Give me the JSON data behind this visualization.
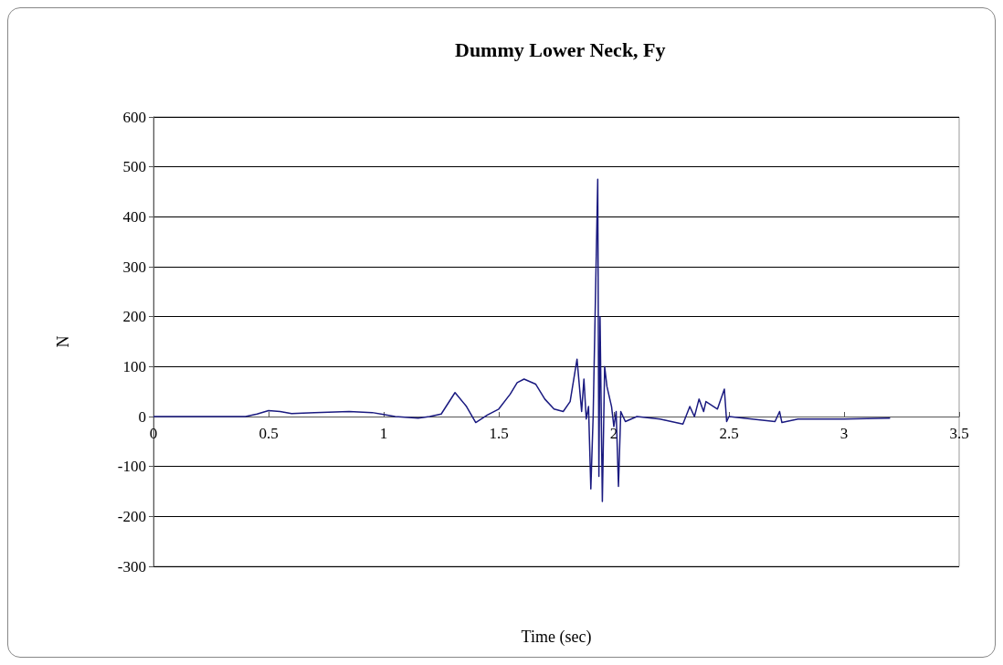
{
  "chart_data": {
    "type": "line",
    "title": "Dummy Lower Neck, Fy",
    "xlabel": "Time (sec)",
    "ylabel": "N",
    "xlim": [
      0,
      3.5
    ],
    "xticks": [
      0,
      0.5,
      1,
      1.5,
      2,
      2.5,
      3,
      3.5
    ],
    "ylim": [
      -300,
      600
    ],
    "yticks": [
      -300,
      -200,
      -100,
      0,
      100,
      200,
      300,
      400,
      500,
      600
    ],
    "grid": "y",
    "marker": "none",
    "line_style": "solid",
    "series": [
      {
        "color": "#1a1a80",
        "x": [
          0,
          0.4,
          0.45,
          0.5,
          0.55,
          0.6,
          0.7,
          0.85,
          0.95,
          1.0,
          1.05,
          1.15,
          1.2,
          1.25,
          1.31,
          1.36,
          1.4,
          1.45,
          1.5,
          1.55,
          1.58,
          1.61,
          1.66,
          1.7,
          1.74,
          1.78,
          1.81,
          1.84,
          1.86,
          1.87,
          1.88,
          1.89,
          1.9,
          1.91,
          1.93,
          1.935,
          1.94,
          1.95,
          1.96,
          1.97,
          1.99,
          2.0,
          2.01,
          2.02,
          2.03,
          2.05,
          2.1,
          2.2,
          2.3,
          2.33,
          2.35,
          2.37,
          2.39,
          2.4,
          2.45,
          2.48,
          2.49,
          2.5,
          2.6,
          2.7,
          2.72,
          2.73,
          2.8,
          3.0,
          3.2
        ],
        "values": [
          0,
          0,
          5,
          12,
          10,
          6,
          8,
          10,
          8,
          4,
          0,
          -3,
          0,
          5,
          48,
          20,
          -12,
          3,
          15,
          45,
          68,
          75,
          65,
          35,
          15,
          10,
          30,
          115,
          10,
          75,
          -5,
          20,
          -145,
          0,
          475,
          -120,
          200,
          -170,
          100,
          60,
          20,
          -20,
          10,
          -140,
          10,
          -10,
          0,
          -5,
          -15,
          20,
          0,
          35,
          10,
          30,
          15,
          55,
          -10,
          0,
          -5,
          -10,
          10,
          -12,
          -5,
          -5,
          -3
        ]
      }
    ]
  }
}
